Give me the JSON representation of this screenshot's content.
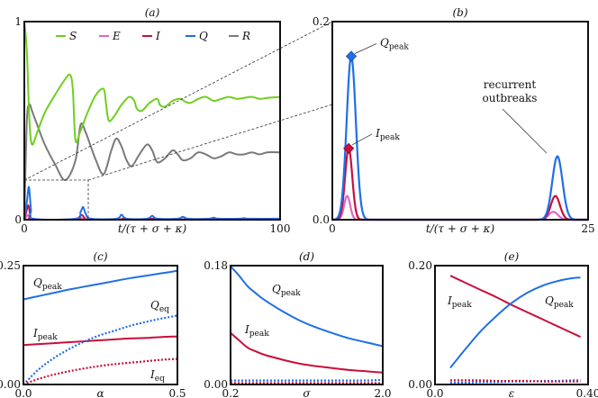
{
  "colors": {
    "S": "#6fcf1f",
    "E": "#d96ac8",
    "I": "#c8103a",
    "Q": "#1f6fe6",
    "R": "#7a7a7a",
    "axis": "#111111",
    "guide": "#333333"
  },
  "chart_data": [
    {
      "id": "a",
      "type": "line",
      "title": "(a)",
      "xlabel": "t/(τ + σ + κ)",
      "ylabel": "",
      "xlim": [
        0,
        100
      ],
      "ylim": [
        0,
        1
      ],
      "xticks": [
        "0",
        "100"
      ],
      "yticks": [
        "0",
        "1"
      ],
      "legend": [
        "S",
        "E",
        "I",
        "Q",
        "R"
      ],
      "legend_position": "top-center",
      "series": [
        {
          "name": "S",
          "x": [
            0,
            1,
            2,
            3,
            5,
            8,
            12,
            16,
            18,
            19,
            20,
            22,
            25,
            28,
            31,
            32,
            33,
            35,
            38,
            41,
            43,
            44,
            46,
            49,
            52,
            53,
            55,
            58,
            61,
            63,
            65,
            68,
            71,
            74,
            77,
            80,
            83,
            86,
            89,
            92,
            95,
            100
          ],
          "y": [
            1,
            0.85,
            0.5,
            0.38,
            0.44,
            0.54,
            0.63,
            0.71,
            0.73,
            0.65,
            0.4,
            0.45,
            0.55,
            0.63,
            0.66,
            0.58,
            0.5,
            0.52,
            0.58,
            0.62,
            0.6,
            0.56,
            0.55,
            0.59,
            0.61,
            0.58,
            0.57,
            0.6,
            0.61,
            0.595,
            0.59,
            0.61,
            0.62,
            0.6,
            0.61,
            0.62,
            0.61,
            0.615,
            0.62,
            0.61,
            0.615,
            0.62
          ]
        },
        {
          "name": "R",
          "x": [
            0,
            1,
            2,
            3,
            5,
            8,
            12,
            16,
            20,
            22,
            24,
            26,
            28,
            31,
            34,
            36,
            38,
            40,
            42,
            45,
            48,
            50,
            52,
            55,
            58,
            60,
            62,
            65,
            68,
            71,
            74,
            77,
            80,
            83,
            86,
            89,
            92,
            95,
            100
          ],
          "y": [
            0,
            0.5,
            0.58,
            0.55,
            0.48,
            0.38,
            0.28,
            0.2,
            0.3,
            0.48,
            0.44,
            0.37,
            0.3,
            0.23,
            0.35,
            0.41,
            0.37,
            0.3,
            0.27,
            0.33,
            0.38,
            0.35,
            0.29,
            0.31,
            0.35,
            0.33,
            0.3,
            0.31,
            0.34,
            0.33,
            0.31,
            0.32,
            0.34,
            0.33,
            0.33,
            0.34,
            0.33,
            0.34,
            0.34
          ]
        },
        {
          "name": "Q",
          "x": [
            0,
            1,
            1.8,
            2.6,
            3.5,
            20,
            22,
            23,
            24,
            26,
            36,
            38,
            40,
            48,
            50,
            52,
            60,
            62,
            64,
            72,
            74,
            76,
            84,
            86,
            88,
            100
          ],
          "y": [
            0,
            0.09,
            0.165,
            0.05,
            0.005,
            0.005,
            0.04,
            0.064,
            0.03,
            0.005,
            0.005,
            0.025,
            0.005,
            0.005,
            0.02,
            0.005,
            0.005,
            0.015,
            0.005,
            0.005,
            0.01,
            0.005,
            0.005,
            0.008,
            0.005,
            0.005
          ]
        },
        {
          "name": "I",
          "x": [
            0,
            1,
            1.6,
            2.4,
            3.3,
            20,
            21.5,
            22.6,
            23.5,
            25,
            37,
            39,
            41,
            49,
            51,
            53,
            100
          ],
          "y": [
            0,
            0.05,
            0.072,
            0.02,
            0.002,
            0.002,
            0.015,
            0.024,
            0.01,
            0.002,
            0.002,
            0.01,
            0.002,
            0.002,
            0.006,
            0.002,
            0.002
          ]
        },
        {
          "name": "E",
          "x": [
            0,
            0.8,
            1.4,
            2.2,
            3.0,
            20,
            21.5,
            22.4,
            23.3,
            25,
            100
          ],
          "y": [
            0,
            0.015,
            0.024,
            0.008,
            0.001,
            0.001,
            0.005,
            0.008,
            0.003,
            0.001,
            0.001
          ]
        }
      ],
      "inset_box": {
        "x": [
          0,
          25
        ],
        "y": [
          0,
          0.2
        ]
      }
    },
    {
      "id": "b",
      "type": "line",
      "title": "(b)",
      "xlabel": "t/(τ + σ + κ)",
      "xlim": [
        0,
        25
      ],
      "ylim": [
        0,
        0.2
      ],
      "xticks": [
        "0",
        "25"
      ],
      "yticks": [
        "0.0",
        "0.2"
      ],
      "series": [
        {
          "name": "Q",
          "peaks": [
            {
              "t": 1.85,
              "y": 0.165,
              "width": 0.45
            },
            {
              "t": 22.0,
              "y": 0.064,
              "width": 0.5
            }
          ]
        },
        {
          "name": "I",
          "peaks": [
            {
              "t": 1.6,
              "y": 0.072,
              "width": 0.35
            },
            {
              "t": 21.8,
              "y": 0.024,
              "width": 0.45
            }
          ]
        },
        {
          "name": "E",
          "peaks": [
            {
              "t": 1.45,
              "y": 0.024,
              "width": 0.3
            },
            {
              "t": 21.6,
              "y": 0.008,
              "width": 0.45
            }
          ]
        }
      ],
      "annotations": [
        {
          "text": "Q_peak",
          "main": "Q",
          "sub": "peak",
          "marker_t": 1.85,
          "marker_y": 0.165,
          "color_key": "Q"
        },
        {
          "text": "I_peak",
          "main": "I",
          "sub": "peak",
          "marker_t": 1.6,
          "marker_y": 0.072,
          "color_key": "I"
        },
        {
          "text": "recurrent outbreaks",
          "line1": "recurrent",
          "line2": "outbreaks"
        }
      ]
    },
    {
      "id": "c",
      "type": "line",
      "title": "(c)",
      "xlabel": "α",
      "xlim": [
        0,
        0.5
      ],
      "ylim": [
        0,
        0.25
      ],
      "xticks": [
        "0.0",
        "0.5"
      ],
      "yticks": [
        "0.00",
        "0.25"
      ],
      "x": [
        0,
        0.05,
        0.1,
        0.15,
        0.2,
        0.25,
        0.3,
        0.35,
        0.4,
        0.45,
        0.5
      ],
      "series": [
        {
          "name": "Q_peak",
          "style": "solid",
          "color_key": "Q",
          "y": [
            0.179,
            0.186,
            0.193,
            0.2,
            0.206,
            0.212,
            0.218,
            0.224,
            0.229,
            0.234,
            0.239
          ]
        },
        {
          "name": "I_peak",
          "style": "solid",
          "color_key": "I",
          "y": [
            0.083,
            0.085,
            0.087,
            0.089,
            0.091,
            0.093,
            0.095,
            0.097,
            0.098,
            0.1,
            0.101
          ]
        },
        {
          "name": "Q_eq",
          "style": "dotted",
          "color_key": "Q",
          "y": [
            0.0,
            0.032,
            0.056,
            0.075,
            0.091,
            0.104,
            0.114,
            0.124,
            0.132,
            0.139,
            0.145
          ]
        },
        {
          "name": "I_eq",
          "style": "dotted",
          "color_key": "I",
          "y": [
            0.0,
            0.012,
            0.021,
            0.028,
            0.034,
            0.039,
            0.043,
            0.046,
            0.049,
            0.052,
            0.054
          ]
        }
      ],
      "labels": [
        {
          "main": "Q",
          "sub": "peak"
        },
        {
          "main": "Q",
          "sub": "eq"
        },
        {
          "main": "I",
          "sub": "peak"
        },
        {
          "main": "I",
          "sub": "eq"
        }
      ]
    },
    {
      "id": "d",
      "type": "line",
      "title": "(d)",
      "xlabel": "σ",
      "xlim": [
        0.2,
        2.0
      ],
      "ylim": [
        0,
        0.18
      ],
      "xticks": [
        "0.2",
        "2.0"
      ],
      "yticks": [
        "0.00",
        "0.18"
      ],
      "x": [
        0.2,
        0.3,
        0.4,
        0.5,
        0.6,
        0.8,
        1.0,
        1.2,
        1.4,
        1.6,
        1.8,
        2.0
      ],
      "series": [
        {
          "name": "Q_peak",
          "style": "solid",
          "color_key": "Q",
          "y": [
            0.179,
            0.165,
            0.149,
            0.138,
            0.128,
            0.112,
            0.098,
            0.087,
            0.078,
            0.07,
            0.064,
            0.058
          ]
        },
        {
          "name": "I_peak",
          "style": "solid",
          "color_key": "I",
          "y": [
            0.078,
            0.067,
            0.056,
            0.05,
            0.045,
            0.038,
            0.032,
            0.028,
            0.025,
            0.022,
            0.02,
            0.018
          ]
        },
        {
          "name": "Q_eq",
          "style": "dotted",
          "color_key": "Q",
          "y": [
            0.006,
            0.006,
            0.006,
            0.006,
            0.006,
            0.006,
            0.006,
            0.006,
            0.006,
            0.006,
            0.006,
            0.007
          ]
        },
        {
          "name": "I_eq",
          "style": "dotted",
          "color_key": "I",
          "y": [
            0.002,
            0.002,
            0.002,
            0.002,
            0.002,
            0.002,
            0.002,
            0.002,
            0.002,
            0.002,
            0.002,
            0.002
          ]
        }
      ],
      "labels": [
        {
          "main": "Q",
          "sub": "peak"
        },
        {
          "main": "I",
          "sub": "peak"
        }
      ]
    },
    {
      "id": "e",
      "type": "line",
      "title": "(e)",
      "xlabel": "ε",
      "xlim": [
        0,
        0.4
      ],
      "ylim": [
        0,
        0.2
      ],
      "xticks": [
        "0.0",
        "0.40"
      ],
      "yticks": [
        "0.00",
        "0.20"
      ],
      "x": [
        0.04,
        0.08,
        0.12,
        0.16,
        0.2,
        0.24,
        0.28,
        0.32,
        0.36,
        0.38
      ],
      "series": [
        {
          "name": "I_peak",
          "style": "solid",
          "color_key": "I",
          "y": [
            0.183,
            0.171,
            0.159,
            0.147,
            0.134,
            0.122,
            0.11,
            0.098,
            0.086,
            0.08
          ]
        },
        {
          "name": "Q_peak",
          "style": "solid",
          "color_key": "Q",
          "y": [
            0.028,
            0.06,
            0.09,
            0.115,
            0.137,
            0.154,
            0.166,
            0.174,
            0.179,
            0.18
          ]
        },
        {
          "name": "Q_eq",
          "style": "dotted",
          "color_key": "Q",
          "y": [
            0.003,
            0.003,
            0.004,
            0.004,
            0.005,
            0.005,
            0.006,
            0.006,
            0.007,
            0.007
          ]
        },
        {
          "name": "I_eq",
          "style": "dotted",
          "color_key": "I",
          "y": [
            0.007,
            0.007,
            0.007,
            0.006,
            0.006,
            0.006,
            0.005,
            0.005,
            0.005,
            0.005
          ]
        }
      ],
      "labels": [
        {
          "main": "I",
          "sub": "peak"
        },
        {
          "main": "Q",
          "sub": "peak"
        }
      ]
    }
  ]
}
